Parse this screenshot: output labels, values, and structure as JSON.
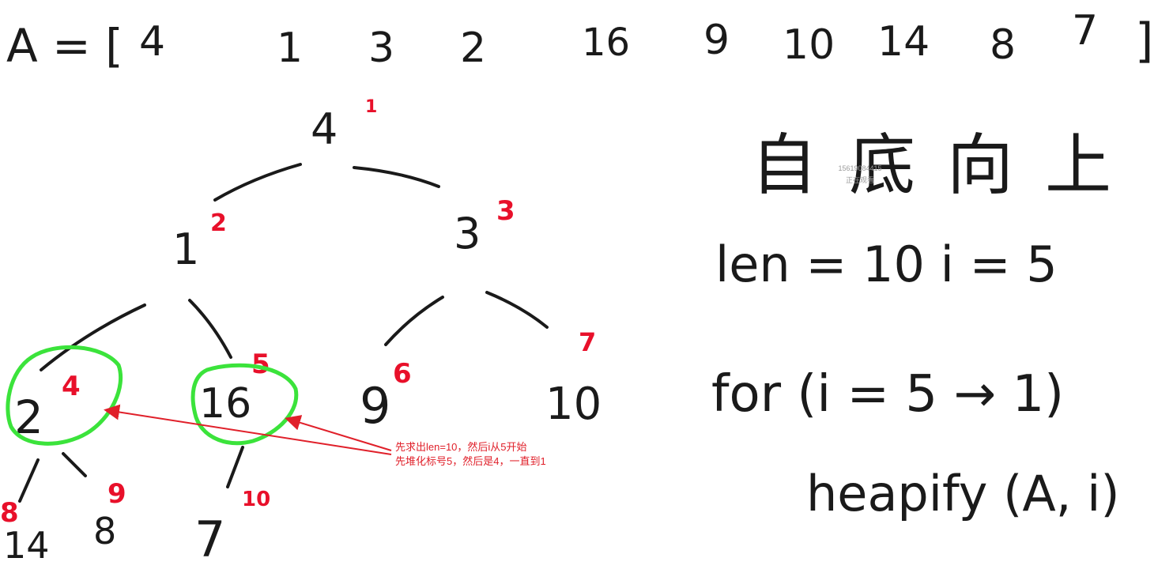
{
  "array_line": {
    "prefix": "A = [",
    "values": [
      "4",
      "1",
      "3",
      "2",
      "16",
      "9",
      "10",
      "14",
      "8",
      "7"
    ],
    "suffix": "]"
  },
  "tree": {
    "nodes": [
      {
        "value": "4",
        "index": "1"
      },
      {
        "value": "1",
        "index": "2"
      },
      {
        "value": "3",
        "index": "3"
      },
      {
        "value": "2",
        "index": "4"
      },
      {
        "value": "16",
        "index": "5"
      },
      {
        "value": "9",
        "index": "6"
      },
      {
        "value": "10",
        "index": "7"
      },
      {
        "value": "14",
        "index": "8"
      },
      {
        "value": "8",
        "index": "9"
      },
      {
        "value": "7",
        "index": "10"
      }
    ]
  },
  "notes_right": {
    "line1": "自底向上",
    "line2": "len = 10     i = 5",
    "line3": "for (i = 5 → 1)",
    "line4": "heapify (A, i)"
  },
  "annotation": {
    "line1": "先求出len=10，然后i从5开始",
    "line2": "先堆化标号5，然后是4，一直到1"
  },
  "watermark": {
    "id": "15619084415",
    "status": "正在观看"
  },
  "colors": {
    "ink": "#1a1a1a",
    "index_red": "#e8102a",
    "highlight_green": "#3be33b",
    "arrow_red": "#e0202a"
  }
}
